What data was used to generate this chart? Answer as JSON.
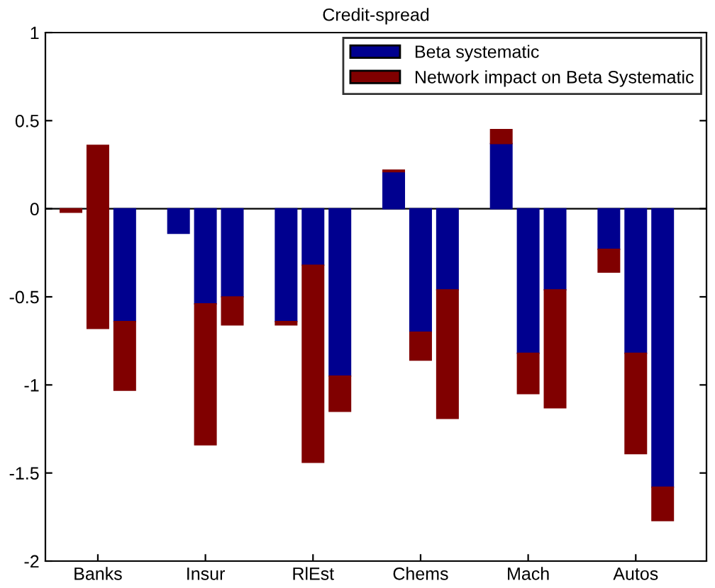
{
  "chart_data": {
    "type": "bar",
    "title": "Credit-spread",
    "stacked": true,
    "categories": [
      null,
      "Banks",
      null,
      null,
      null,
      "Insur",
      null,
      null,
      null,
      "RlEst",
      null,
      null,
      null,
      "Chems",
      null,
      null,
      null,
      "Mach",
      null,
      null,
      null,
      "Autos",
      null
    ],
    "series": [
      {
        "name": "Beta systematic",
        "color": "#00008f",
        "values": [
          null,
          null,
          -0.64,
          null,
          -0.14,
          -0.54,
          -0.5,
          null,
          -0.64,
          -0.32,
          -0.95,
          null,
          0.21,
          -0.7,
          -0.46,
          null,
          0.37,
          -0.82,
          -0.46,
          null,
          -0.23,
          -0.82,
          -1.58
        ]
      },
      {
        "name": "Network impact on Beta Systematic",
        "color": "#800000",
        "values": [
          -0.02,
          -1.04,
          -0.39,
          null,
          null,
          -0.8,
          -0.16,
          null,
          -0.02,
          -1.12,
          -0.2,
          null,
          0.01,
          -0.16,
          -0.73,
          null,
          0.08,
          -0.23,
          -0.67,
          null,
          -0.13,
          -0.57,
          -0.19
        ],
        "base": [
          0,
          0.36,
          -0.64,
          null,
          null,
          -0.54,
          -0.5,
          null,
          -0.64,
          -0.32,
          -0.95,
          null,
          0.21,
          -0.7,
          -0.46,
          null,
          0.37,
          -0.82,
          -0.46,
          null,
          -0.23,
          -0.82,
          -1.58
        ]
      }
    ],
    "ylim": [
      -2,
      1
    ],
    "yticks": [
      -2,
      -1.5,
      -1,
      -0.5,
      0,
      0.5,
      1
    ],
    "ref_lines": [
      {
        "axis": "y",
        "value": 0,
        "color": "#000000"
      }
    ],
    "legend": "top right",
    "grid": false
  }
}
